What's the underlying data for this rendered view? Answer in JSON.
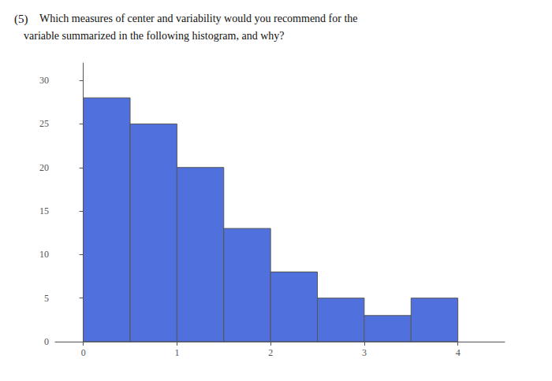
{
  "chart_data": {
    "type": "histogram",
    "annotations": [
      "(5)",
      "Which measures of center and variability would you recommend for the",
      "variable summarized in the following histogram, and why?"
    ],
    "bins": [
      0.0,
      0.5,
      1.0,
      1.5,
      2.0,
      2.5,
      3.0,
      3.5,
      4.0
    ],
    "values": [
      28,
      25,
      20,
      13,
      8,
      5,
      3,
      5
    ],
    "xlim": [
      -0.3,
      4.5
    ],
    "ylim": [
      0,
      32
    ],
    "xticks": [
      0,
      1,
      2,
      3,
      4
    ],
    "yticks": [
      0,
      5,
      10,
      15,
      20,
      25,
      30
    ],
    "grid": false
  }
}
